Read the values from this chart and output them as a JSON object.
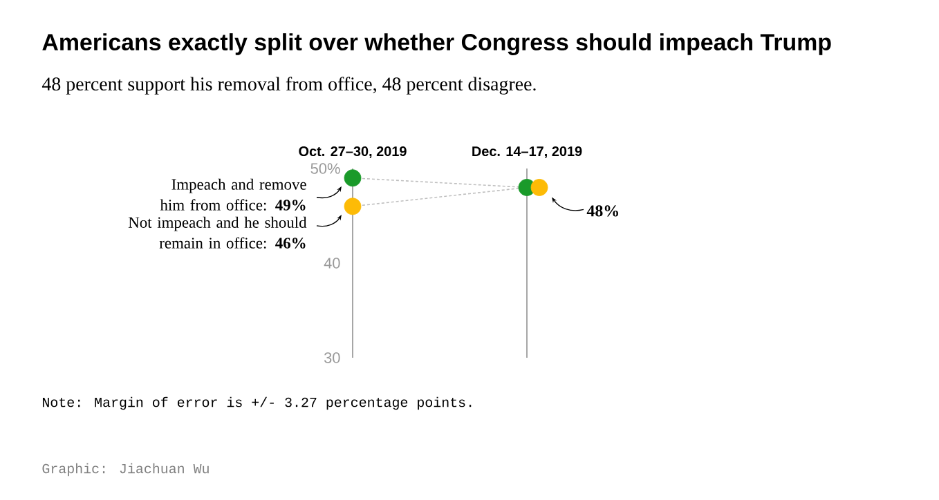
{
  "chart_data": {
    "type": "line",
    "title": "Americans exactly split over whether Congress should impeach Trump",
    "subtitle": "48 percent support his removal from office, 48 percent disagree.",
    "categories": [
      "Oct. 27–30, 2019",
      "Dec. 14–17, 2019"
    ],
    "series": [
      {
        "name": "Impeach and remove him from office:",
        "color": "#1a9a2a",
        "values": [
          49,
          48
        ],
        "value_labels": [
          "49%",
          null
        ]
      },
      {
        "name": "Not impeach and he should remain in office:",
        "color": "#fdbb06",
        "values": [
          46,
          48
        ],
        "value_labels": [
          "46%",
          "48%"
        ]
      }
    ],
    "ylim": [
      30,
      50
    ],
    "yticks": [
      30,
      40,
      {
        "value": 50,
        "label": "50%"
      }
    ],
    "grid": "x",
    "legend": false,
    "marker": "circle",
    "line_style": "dotted",
    "annotations": [
      "Note: Margin of error is +/- 3.27 percentage points.",
      "Graphic: Jiachuan Wu"
    ]
  }
}
